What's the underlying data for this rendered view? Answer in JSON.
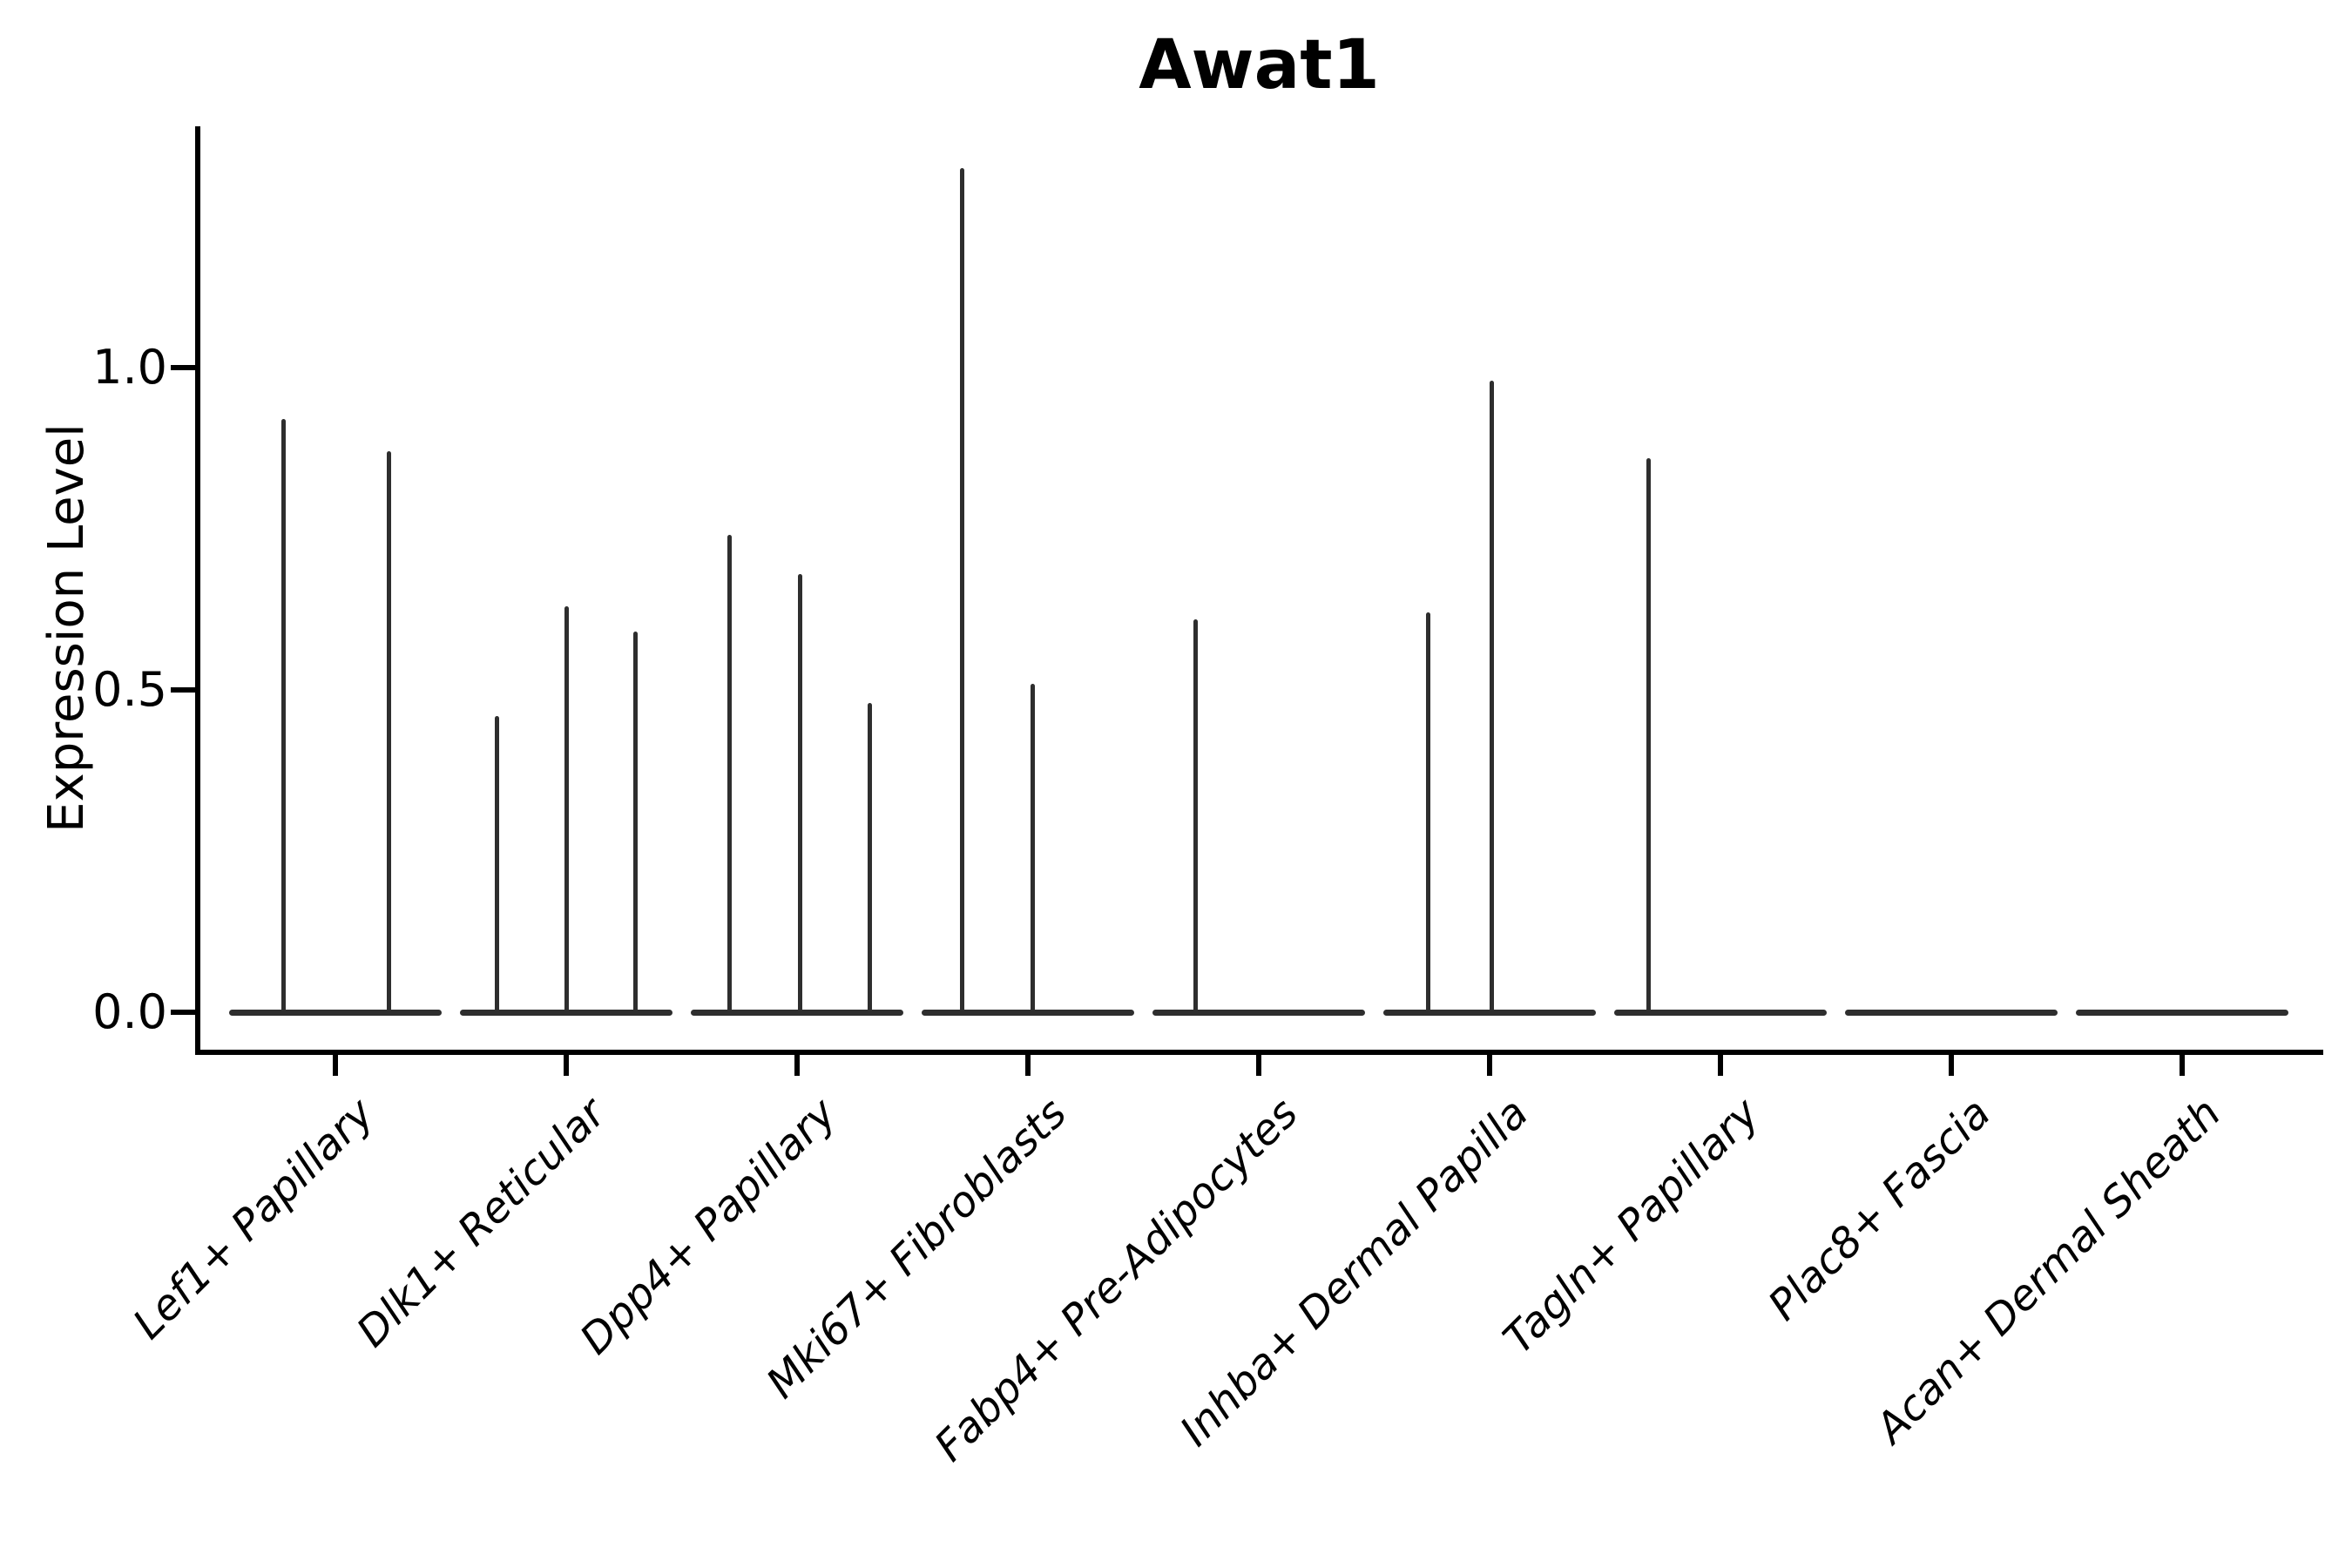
{
  "figure": {
    "background": "#ffffff",
    "line_color": "#2e2e2e",
    "axis_color": "#000000"
  },
  "chart_data": {
    "type": "violin",
    "title": "Awat1",
    "ylabel": "Expression Level",
    "xlabel": "",
    "grid": false,
    "legend_position": "none",
    "ylim": [
      -0.06,
      1.37
    ],
    "yticks": [
      {
        "label": "0.0",
        "value": 0.0
      },
      {
        "label": "0.5",
        "value": 0.5
      },
      {
        "label": "1.0",
        "value": 1.0
      }
    ],
    "categories": [
      {
        "label": "Lef1+ Papillary",
        "spikes": [
          {
            "dx": -60,
            "value": 0.92
          },
          {
            "dx": 61,
            "value": 0.87
          }
        ]
      },
      {
        "label": "Dlk1+ Reticular",
        "spikes": [
          {
            "dx": -80,
            "value": 0.46
          },
          {
            "dx": 0,
            "value": 0.63
          },
          {
            "dx": 79,
            "value": 0.59
          }
        ]
      },
      {
        "label": "Dpp4+ Papillary",
        "spikes": [
          {
            "dx": -78,
            "value": 0.74
          },
          {
            "dx": 3,
            "value": 0.68
          },
          {
            "dx": 83,
            "value": 0.48
          }
        ]
      },
      {
        "label": "Mki67+ Fibroblasts",
        "spikes": [
          {
            "dx": -76,
            "value": 1.31
          },
          {
            "dx": 5,
            "value": 0.51
          }
        ]
      },
      {
        "label": "Fabp4+ Pre-Adipocytes",
        "spikes": [
          {
            "dx": -73,
            "value": 0.61
          }
        ]
      },
      {
        "label": "Inhba+ Dermal Papilla",
        "spikes": [
          {
            "dx": -71,
            "value": 0.62
          },
          {
            "dx": 2,
            "value": 0.98
          }
        ]
      },
      {
        "label": "Tagln+ Papillary",
        "spikes": [
          {
            "dx": -83,
            "value": 0.86
          }
        ]
      },
      {
        "label": "Plac8+ Fascia",
        "spikes": []
      },
      {
        "label": "Acan+ Dermal Sheath",
        "spikes": []
      }
    ]
  }
}
